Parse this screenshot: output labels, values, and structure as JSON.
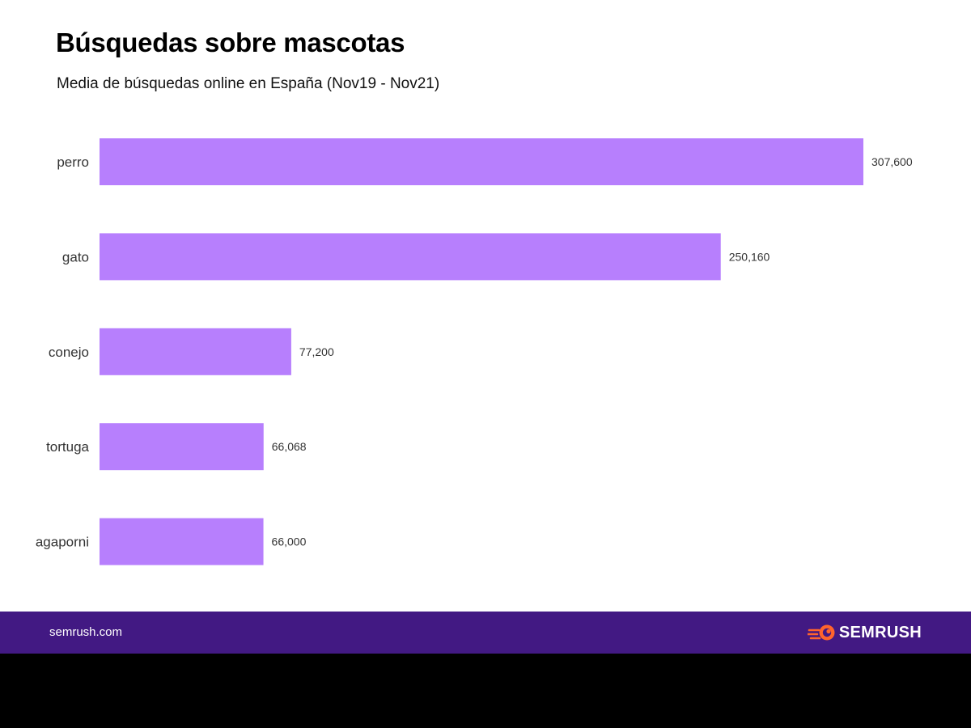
{
  "header": {
    "title": "Búsquedas sobre mascotas",
    "subtitle": "Media de búsquedas online en España (Nov19 - Nov21)"
  },
  "chart_data": {
    "type": "bar",
    "orientation": "horizontal",
    "categories": [
      "perro",
      "gato",
      "conejo",
      "tortuga",
      "agaporni"
    ],
    "values": [
      307600,
      250160,
      77200,
      66068,
      66000
    ],
    "value_labels": [
      "307,600",
      "250,160",
      "77,200",
      "66,068",
      "66,000"
    ],
    "title": "Búsquedas sobre mascotas",
    "subtitle": "Media de búsquedas online en España (Nov19 - Nov21)",
    "xlabel": "",
    "ylabel": "",
    "grid": false,
    "legend": "none",
    "bar_color": "#b77ffd"
  },
  "footer": {
    "url": "semrush.com",
    "brand": "SEMRUSH",
    "brand_icon": "semrush-logo-icon",
    "background_color": "#421983",
    "icon_color": "#ff642d"
  }
}
